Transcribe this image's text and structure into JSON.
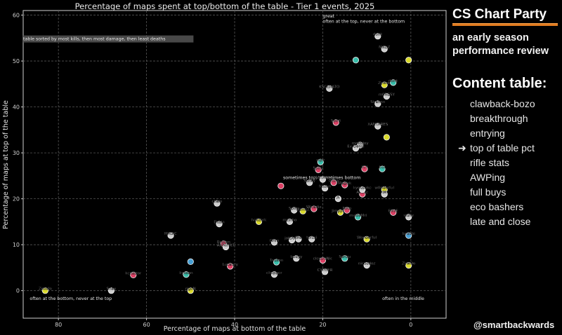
{
  "chart_data": {
    "type": "scatter",
    "title": "Percentage of maps spent at top/bottom of the table - Tier 1 events, 2025",
    "xlabel": "Percentage of maps at bottom of the table",
    "ylabel": "Percentage of maps at top of the table",
    "xlim": [
      88,
      -8
    ],
    "ylim": [
      -6,
      61
    ],
    "x_inverted": true,
    "xticks": [
      80,
      60,
      40,
      20,
      0
    ],
    "yticks": [
      0,
      10,
      20,
      30,
      40,
      50,
      60
    ],
    "grid": true,
    "annotations": [
      {
        "text": "table sorted by most kills, then most damage, then least deaths",
        "x": 88,
        "y": 54.5,
        "boxed": true
      },
      {
        "text": "great",
        "x": 20,
        "y": 59.5
      },
      {
        "text": "often at the top, never at the bottom",
        "x": 20,
        "y": 58.3
      },
      {
        "text": "sometimes top, sometimes bottom",
        "x": 29,
        "y": 24.3
      },
      {
        "text": "often at the bottom, never at the top",
        "x": 86.5,
        "y": -2
      },
      {
        "text": "often in the middle",
        "x": 6.5,
        "y": -2
      }
    ],
    "colors": {
      "white": "#d9d9d9",
      "yellow": "#e6e62e",
      "pink": "#e8446a",
      "cyan": "#3cc8b4",
      "blue": "#4aa8e0"
    },
    "points": [
      {
        "label": "Zoosfo",
        "x": 83,
        "y": 0,
        "color": "yellow"
      },
      {
        "label": "Snax",
        "x": 68,
        "y": 0,
        "color": "white"
      },
      {
        "label": "kensizor",
        "x": 63,
        "y": 3.4,
        "color": "pink"
      },
      {
        "label": "MAGiC",
        "x": 54.5,
        "y": 12,
        "color": "white"
      },
      {
        "label": "kyxsan",
        "x": 51,
        "y": 3.5,
        "color": "cyan"
      },
      {
        "label": "",
        "x": 50,
        "y": 6.3,
        "color": "blue"
      },
      {
        "label": "rigoN",
        "x": 50,
        "y": 0,
        "color": "yellow"
      },
      {
        "label": "chelo",
        "x": 44,
        "y": 19,
        "color": "white"
      },
      {
        "label": "Dosia",
        "x": 43.5,
        "y": 14.5,
        "color": "white"
      },
      {
        "label": "Brollan",
        "x": 42.5,
        "y": 10.2,
        "color": "pink"
      },
      {
        "label": "ANNIHILT",
        "x": 42,
        "y": 9.5,
        "color": "white"
      },
      {
        "label": "Lucaozy",
        "x": 41,
        "y": 5.3,
        "color": "pink"
      },
      {
        "label": "",
        "x": 29.5,
        "y": 22.8,
        "color": "pink"
      },
      {
        "label": "Sunky",
        "x": 23,
        "y": 23.5,
        "color": "white"
      },
      {
        "label": "hallzerk",
        "x": 34.5,
        "y": 15,
        "color": "yellow"
      },
      {
        "label": "Grim",
        "x": 31,
        "y": 10.5,
        "color": "white"
      },
      {
        "label": "Tauson",
        "x": 30.5,
        "y": 6.2,
        "color": "cyan"
      },
      {
        "label": "chopper",
        "x": 31,
        "y": 3.5,
        "color": "white"
      },
      {
        "label": "mzinho",
        "x": 27.5,
        "y": 15,
        "color": "white"
      },
      {
        "label": "Spinx",
        "x": 26.5,
        "y": 17.5,
        "color": "white"
      },
      {
        "label": "jottAAA",
        "x": 27,
        "y": 11,
        "color": "white"
      },
      {
        "label": "JBa",
        "x": 25.5,
        "y": 11.2,
        "color": "white"
      },
      {
        "label": "torzsi",
        "x": 22.5,
        "y": 11.2,
        "color": "white"
      },
      {
        "label": "flameZ",
        "x": 24.5,
        "y": 17.3,
        "color": "yellow"
      },
      {
        "label": "Wicadia",
        "x": 22,
        "y": 17.8,
        "color": "pink"
      },
      {
        "label": "bodyy",
        "x": 26,
        "y": 7,
        "color": "white"
      },
      {
        "label": "electroNic",
        "x": 20,
        "y": 6.6,
        "color": "pink"
      },
      {
        "label": "CYPHER",
        "x": 19.5,
        "y": 4.1,
        "color": "white"
      },
      {
        "label": "Senzu",
        "x": 15,
        "y": 7,
        "color": "cyan"
      },
      {
        "label": "nicoodoz",
        "x": 10,
        "y": 5.5,
        "color": "white"
      },
      {
        "label": "Spinx",
        "x": 21,
        "y": 26.3,
        "color": "pink"
      },
      {
        "label": "ropz",
        "x": 20.5,
        "y": 28,
        "color": "cyan"
      },
      {
        "label": "XANTARES",
        "x": 20,
        "y": 24.2,
        "color": "white"
      },
      {
        "label": "frozen",
        "x": 19.5,
        "y": 22.3,
        "color": "white"
      },
      {
        "label": "sh1ro",
        "x": 17.5,
        "y": 23.5,
        "color": "pink"
      },
      {
        "label": "Magisk",
        "x": 15,
        "y": 23,
        "color": "pink"
      },
      {
        "label": "jL",
        "x": 16.5,
        "y": 20,
        "color": "white"
      },
      {
        "label": "Jimpphat",
        "x": 16,
        "y": 17,
        "color": "yellow"
      },
      {
        "label": "NiKo",
        "x": 14.5,
        "y": 17.5,
        "color": "pink"
      },
      {
        "label": "malbsMd",
        "x": 12,
        "y": 16,
        "color": "cyan"
      },
      {
        "label": "Wonderful",
        "x": 10,
        "y": 11.2,
        "color": "yellow"
      },
      {
        "label": "ICY",
        "x": 10.5,
        "y": 26.5,
        "color": "pink"
      },
      {
        "label": "Ax1Le",
        "x": 11,
        "y": 21,
        "color": "pink"
      },
      {
        "label": "kyousuke",
        "x": 11,
        "y": 22,
        "color": "white"
      },
      {
        "label": "b1t",
        "x": 6.5,
        "y": 26.5,
        "color": "cyan"
      },
      {
        "label": "w0nderful",
        "x": 6,
        "y": 22,
        "color": "yellow"
      },
      {
        "label": "iM",
        "x": 6,
        "y": 21,
        "color": "white"
      },
      {
        "label": "EliGE",
        "x": 4,
        "y": 17,
        "color": "pink"
      },
      {
        "label": "siuhy",
        "x": 0.5,
        "y": 16,
        "color": "white"
      },
      {
        "label": "kyuubi",
        "x": 0.5,
        "y": 12,
        "color": "blue"
      },
      {
        "label": "ZywOo",
        "x": 0.5,
        "y": 5.5,
        "color": "yellow"
      },
      {
        "label": "KSCERATO",
        "x": 18.5,
        "y": 44,
        "color": "white"
      },
      {
        "label": "Spirit",
        "x": 17,
        "y": 36.6,
        "color": "pink"
      },
      {
        "label": "XANTARES",
        "x": 7.5,
        "y": 35.8,
        "color": "white"
      },
      {
        "label": "",
        "x": 5.5,
        "y": 33.4,
        "color": "yellow"
      },
      {
        "label": "molodoy",
        "x": 11.5,
        "y": 31.7,
        "color": "white"
      },
      {
        "label": "Ex-Denis",
        "x": 12.5,
        "y": 31,
        "color": "white"
      },
      {
        "label": "Zywoo",
        "x": 6,
        "y": 44.8,
        "color": "yellow"
      },
      {
        "label": "donk",
        "x": 4,
        "y": 45.3,
        "color": "cyan"
      },
      {
        "label": "m0NESY",
        "x": 5.5,
        "y": 42.3,
        "color": "white"
      },
      {
        "label": "Sirahan",
        "x": 7.5,
        "y": 40.7,
        "color": "white"
      },
      {
        "label": "",
        "x": 12.5,
        "y": 50.2,
        "color": "cyan"
      },
      {
        "label": "",
        "x": 0.5,
        "y": 50.2,
        "color": "yellow"
      },
      {
        "label": "donk",
        "x": 7.5,
        "y": 55.4,
        "color": "white"
      },
      {
        "label": "NiKoZ",
        "x": 6,
        "y": 52.6,
        "color": "white"
      }
    ]
  },
  "sidebar": {
    "brand": "CS Chart Party",
    "subtitle": "an early season performance review",
    "toc_heading": "Content table:",
    "toc_arrow": "➜",
    "toc_items": [
      "clawback-bozo",
      "breakthrough",
      "entrying",
      "top of table pct",
      "rifle stats",
      "AWPing",
      "full buys",
      "eco bashers",
      "late and close"
    ],
    "active_index": 3,
    "handle": "@smartbackwards"
  }
}
